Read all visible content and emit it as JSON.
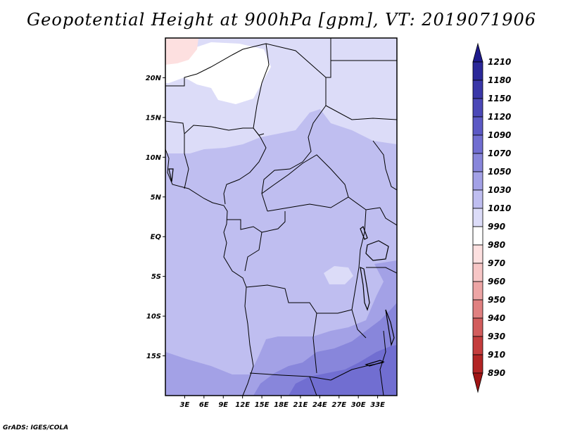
{
  "title": "Geopotential Height at 900hPa [gpm], VT: 2019071906",
  "credit": "GrADS: IGES/COLA",
  "map": {
    "lon_range": [
      0,
      36
    ],
    "lat_range": [
      -20,
      25
    ],
    "lat_labels": [
      {
        "lat": 20,
        "text": "20N"
      },
      {
        "lat": 15,
        "text": "15N"
      },
      {
        "lat": 10,
        "text": "10N"
      },
      {
        "lat": 5,
        "text": "5N"
      },
      {
        "lat": 0,
        "text": "EQ"
      },
      {
        "lat": -5,
        "text": "5S"
      },
      {
        "lat": -10,
        "text": "10S"
      },
      {
        "lat": -15,
        "text": "15S"
      }
    ],
    "lon_labels": [
      {
        "lon": 3,
        "text": "3E"
      },
      {
        "lon": 6,
        "text": "6E"
      },
      {
        "lon": 9,
        "text": "9E"
      },
      {
        "lon": 12,
        "text": "12E"
      },
      {
        "lon": 15,
        "text": "15E"
      },
      {
        "lon": 18,
        "text": "18E"
      },
      {
        "lon": 21,
        "text": "21E"
      },
      {
        "lon": 24,
        "text": "24E"
      },
      {
        "lon": 27,
        "text": "27E"
      },
      {
        "lon": 30,
        "text": "30E"
      },
      {
        "lon": 33,
        "text": "33E"
      }
    ]
  },
  "colorbar": {
    "levels": [
      "1210",
      "1180",
      "1150",
      "1120",
      "1090",
      "1070",
      "1050",
      "1030",
      "1010",
      "990",
      "980",
      "970",
      "960",
      "950",
      "940",
      "930",
      "910",
      "890"
    ],
    "colors": [
      "#1e1a8c",
      "#2b2899",
      "#3a37a8",
      "#4b48b7",
      "#5c59c5",
      "#716ed1",
      "#8886db",
      "#a3a1e6",
      "#bfbef0",
      "#dcdcf8",
      "#ffffff",
      "#fde0e0",
      "#f7c6c6",
      "#eda5a5",
      "#e08080",
      "#d25c5c",
      "#c43c3c",
      "#b22424",
      "#a01414"
    ]
  },
  "fill_colors": {
    "h1030": "#dcdcf8",
    "h1050": "#bfbef0",
    "h1070": "#a3a1e6",
    "h1090": "#8886db",
    "h1120": "#716ed1",
    "h1010": "#ffffff",
    "h990": "#fde0e0"
  }
}
